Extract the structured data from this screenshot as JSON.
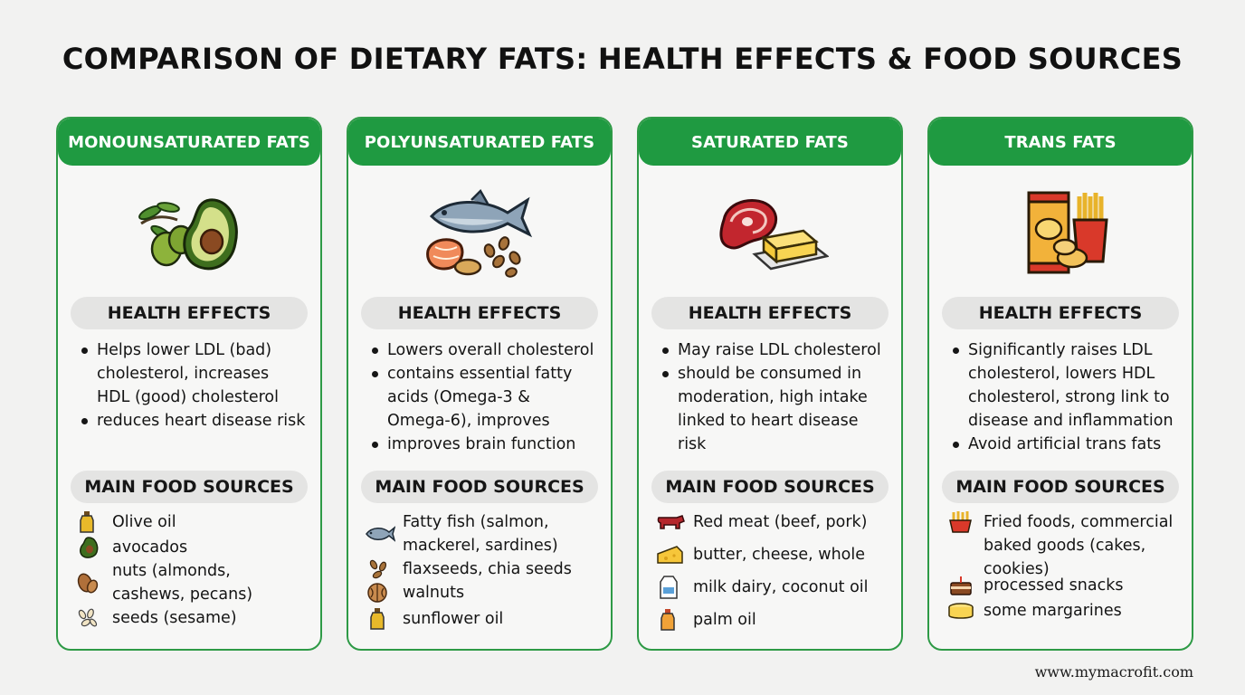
{
  "title": "COMPARISON OF DIETARY FATS: HEALTH EFFECTS & FOOD SOURCES",
  "section_labels": {
    "health_effects": "HEALTH EFFECTS",
    "food_sources": "MAIN FOOD SOURCES"
  },
  "colors": {
    "accent_green": "#1f9a41",
    "card_border": "#2e9a46",
    "pill_bg": "#e4e4e3",
    "background": "#f2f2f1"
  },
  "cards": [
    {
      "title": "MONOUNSATURATED FATS",
      "hero_icon": "olive-avocado-icon",
      "effects": [
        "Helps lower LDL (bad) cholesterol, increases HDL (good) cholesterol",
        "reduces heart disease risk"
      ],
      "sources": [
        {
          "icon": "oil-bottle-icon",
          "lines": [
            "Olive oil"
          ]
        },
        {
          "icon": "avocado-icon",
          "lines": [
            "avocados"
          ]
        },
        {
          "icon": "almond-icon",
          "lines": [
            "nuts (almonds,",
            "cashews, pecans)"
          ]
        },
        {
          "icon": "seeds-icon",
          "lines": [
            "seeds (sesame)"
          ]
        }
      ]
    },
    {
      "title": "POLYUNSATURATED FATS",
      "hero_icon": "fish-salmon-seeds-icon",
      "effects": [
        "Lowers overall cholesterol",
        "contains essential fatty acids (Omega-3 & Omega-6), improves",
        "improves brain function"
      ],
      "sources": [
        {
          "icon": "fish-icon",
          "lines": [
            "Fatty fish (salmon,",
            "mackerel, sardines)"
          ]
        },
        {
          "icon": "flaxseed-icon",
          "lines": [
            "flaxseeds, chia seeds"
          ]
        },
        {
          "icon": "walnut-icon",
          "lines": [
            "walnuts"
          ]
        },
        {
          "icon": "oil-bottle-icon",
          "lines": [
            "sunflower oil"
          ]
        }
      ]
    },
    {
      "title": "SATURATED FATS",
      "hero_icon": "steak-butter-icon",
      "effects": [
        "May raise LDL cholesterol",
        "should be consumed in moderation, high intake linked to heart disease risk"
      ],
      "sources": [
        {
          "icon": "cow-icon",
          "lines": [
            "Red meat (beef, pork)"
          ]
        },
        {
          "icon": "cheese-icon",
          "lines": [
            "butter, cheese, whole"
          ]
        },
        {
          "icon": "milk-carton-icon",
          "lines": [
            "milk dairy, coconut oil"
          ]
        },
        {
          "icon": "palm-oil-bottle-icon",
          "lines": [
            "palm oil"
          ]
        }
      ]
    },
    {
      "title": "TRANS FATS",
      "hero_icon": "chips-fries-icon",
      "effects": [
        "Significantly raises LDL cholesterol, lowers HDL cholesterol, strong link to disease and inflammation",
        "Avoid artificial trans fats"
      ],
      "sources": [
        {
          "icon": "fries-icon",
          "lines": [
            "Fried foods, commercial",
            "baked goods (cakes,",
            "cookies)"
          ]
        },
        {
          "icon": "cake-icon",
          "lines": [
            "processed snacks"
          ]
        },
        {
          "icon": "margarine-tub-icon",
          "lines": [
            "some margarines"
          ]
        }
      ]
    }
  ],
  "watermark": "www.mymacrofit.com"
}
